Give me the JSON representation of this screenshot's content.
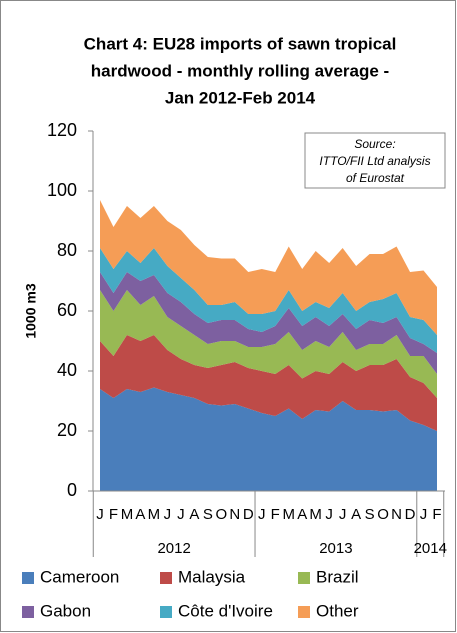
{
  "chart_data": {
    "type": "stacked_area",
    "title": [
      "Chart 4: EU28 imports of sawn tropical",
      "hardwood - monthly rolling average -",
      "Jan 2012-Feb 2014"
    ],
    "annotation": [
      "Source:",
      "ITTO/FII Ltd analysis",
      "of Eurostat"
    ],
    "ylabel": "1000 m3",
    "categories": [
      "J",
      "F",
      "M",
      "A",
      "M",
      "J",
      "J",
      "A",
      "S",
      "O",
      "N",
      "D",
      "J",
      "F",
      "M",
      "A",
      "M",
      "J",
      "J",
      "A",
      "S",
      "O",
      "N",
      "D",
      "J",
      "F"
    ],
    "x_groups": [
      "2012",
      "2013",
      "2014"
    ],
    "ylim": [
      0,
      120
    ],
    "yticks": [
      0,
      20,
      40,
      60,
      80,
      100,
      120
    ],
    "series": [
      {
        "name": "Cameroon",
        "color": "#4a7ebb",
        "values": [
          34,
          31,
          34,
          33,
          34.5,
          33,
          32,
          31,
          29,
          28.5,
          29,
          27.5,
          26,
          25,
          27.5,
          24,
          27,
          26.5,
          30,
          27,
          27,
          26.5,
          27,
          23.5,
          22,
          20
        ]
      },
      {
        "name": "Malaysia",
        "color": "#be4b48",
        "values": [
          16,
          14,
          18,
          17,
          17.5,
          14,
          12,
          11,
          12,
          13.5,
          14,
          13.5,
          14,
          14,
          14.5,
          13.5,
          13,
          12.5,
          13,
          13,
          15,
          15.5,
          17,
          14.5,
          14,
          11
        ]
      },
      {
        "name": "Brazil",
        "color": "#98b954",
        "values": [
          17,
          15,
          15,
          12,
          13,
          11,
          11,
          10,
          8,
          8,
          7,
          7,
          8,
          10,
          11,
          9.5,
          10,
          9,
          10,
          7,
          7,
          7,
          8,
          7,
          9,
          8
        ]
      },
      {
        "name": "Gabon",
        "color": "#7d60a0",
        "values": [
          6,
          6,
          6,
          8,
          7,
          8,
          8,
          7,
          7,
          7,
          7,
          6,
          5,
          6,
          8,
          8,
          8,
          7,
          6,
          7,
          8,
          7,
          6,
          6,
          4,
          7
        ]
      },
      {
        "name": "Côte d'Ivoire",
        "color": "#46aac4",
        "values": [
          8,
          8,
          7,
          6,
          9,
          9,
          8,
          8,
          6,
          5,
          6,
          5,
          6,
          5,
          6,
          5,
          5,
          6,
          7,
          6,
          6,
          8,
          8,
          7,
          8,
          6
        ]
      },
      {
        "name": "Other",
        "color": "#f59d56",
        "values": [
          16,
          14,
          15,
          15,
          14,
          15,
          16,
          15,
          16,
          15.5,
          14.5,
          14,
          15,
          13,
          14.5,
          14,
          17,
          15,
          15,
          15,
          16,
          15,
          15.5,
          15,
          16.5,
          16
        ]
      }
    ]
  }
}
